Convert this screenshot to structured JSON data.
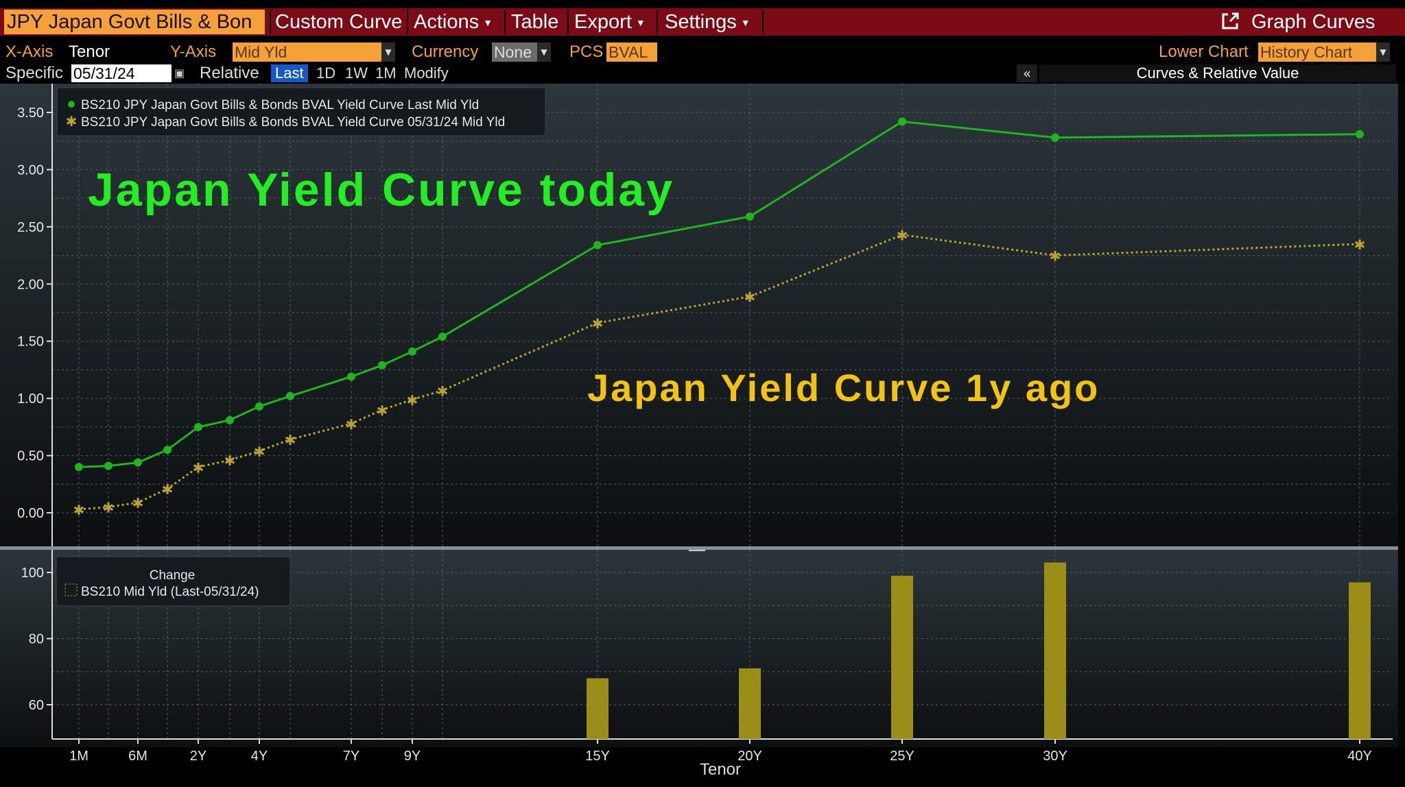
{
  "toolbar": {
    "security_tab": "JPY Japan Govt Bills & Bon",
    "custom_curve": "Custom Curve",
    "actions": "Actions",
    "table": "Table",
    "export": "Export",
    "settings": "Settings",
    "graph_curves": "Graph Curves"
  },
  "controls": {
    "x_axis_label": "X-Axis",
    "x_axis_value": "Tenor",
    "y_axis_label": "Y-Axis",
    "y_axis_value": "Mid Yld",
    "currency_label": "Currency",
    "currency_value": "None",
    "pcs_label": "PCS",
    "pcs_value": "BVAL",
    "lower_chart_label": "Lower Chart",
    "lower_chart_value": "History Chart",
    "specific_label": "Specific",
    "specific_date": "05/31/24",
    "relative_label": "Relative",
    "rel_last": "Last",
    "rel_1d": "1D",
    "rel_1w": "1W",
    "rel_1m": "1M",
    "modify": "Modify",
    "collapse": "«",
    "curves_rv": "Curves & Relative Value"
  },
  "annotations": {
    "today": "Japan Yield Curve today",
    "year_ago": "Japan Yield Curve 1y ago"
  },
  "colors": {
    "today": "#1fb51f",
    "year_ago": "#b9a433",
    "bar": "#9a8d18",
    "annotation_today": "#22ee22",
    "annotation_year_ago": "#f2c40f",
    "accent": "#f4a13a",
    "menu_bg": "#7d0b15"
  },
  "chart_data": [
    {
      "type": "line",
      "xlabel": "",
      "ylim": [
        -0.2,
        3.6
      ],
      "yticks": [
        "0.00",
        "0.50",
        "1.00",
        "1.50",
        "2.00",
        "2.50",
        "3.00",
        "3.50"
      ],
      "grid": true,
      "legend_position": "top-left",
      "series": [
        {
          "name": "BS210 JPY Japan Govt Bills & Bonds BVAL Yield Curve Last Mid Yld",
          "marker": "dot",
          "x": [
            0.083,
            0.25,
            0.5,
            1,
            2,
            3,
            4,
            5,
            7,
            8,
            9,
            10,
            15,
            20,
            25,
            30,
            40
          ],
          "values": [
            0.4,
            0.41,
            0.44,
            0.55,
            0.75,
            0.81,
            0.93,
            1.02,
            1.19,
            1.29,
            1.41,
            1.54,
            2.34,
            2.59,
            3.42,
            3.28,
            3.31
          ]
        },
        {
          "name": "BS210 JPY Japan Govt Bills & Bonds BVAL Yield Curve 05/31/24 Mid Yld",
          "marker": "star",
          "x": [
            0.083,
            0.25,
            0.5,
            1,
            2,
            3,
            4,
            5,
            7,
            8,
            9,
            10,
            15,
            20,
            25,
            30,
            40
          ],
          "values": [
            0.03,
            0.05,
            0.09,
            0.21,
            0.4,
            0.46,
            0.54,
            0.64,
            0.78,
            0.9,
            0.99,
            1.07,
            1.66,
            1.89,
            2.43,
            2.25,
            2.35
          ]
        }
      ]
    },
    {
      "type": "bar",
      "title": "Change",
      "xlabel": "Tenor",
      "ylim": [
        50,
        103
      ],
      "yticks": [
        "60",
        "80",
        "100"
      ],
      "xticks": [
        "1M",
        "6M",
        "2Y",
        "4Y",
        "7Y",
        "9Y",
        "15Y",
        "20Y",
        "25Y",
        "30Y",
        "40Y"
      ],
      "grid": true,
      "legend_position": "top-left",
      "series": [
        {
          "name": "BS210 Mid Yld (Last-05/31/24)",
          "categories": [
            "15Y",
            "20Y",
            "25Y",
            "30Y",
            "40Y"
          ],
          "values": [
            68,
            71,
            99,
            103,
            97
          ]
        }
      ]
    }
  ]
}
